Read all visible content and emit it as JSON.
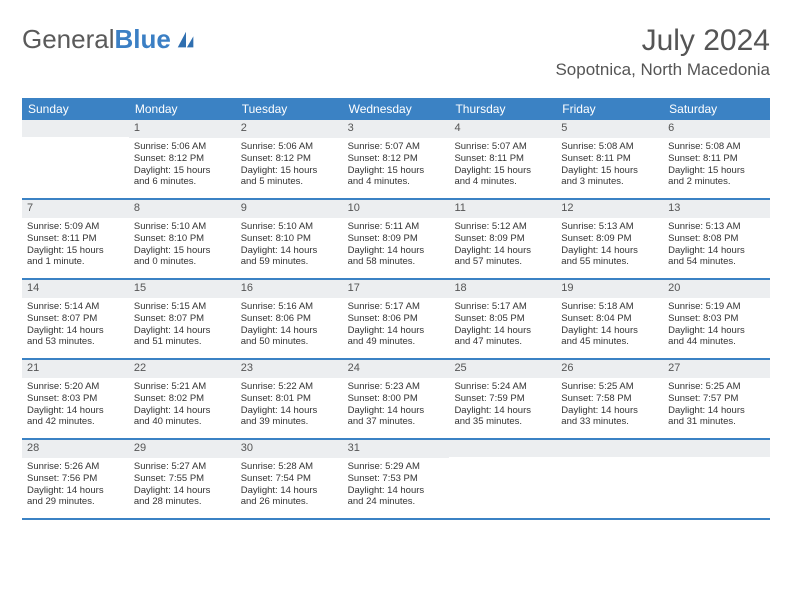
{
  "logo": {
    "general": "General",
    "blue": "Blue"
  },
  "title": "July 2024",
  "location": "Sopotnica, North Macedonia",
  "colors": {
    "header_bg": "#3b82c4",
    "daynum_bg": "#eceef0",
    "text": "#333333"
  },
  "dow": [
    "Sunday",
    "Monday",
    "Tuesday",
    "Wednesday",
    "Thursday",
    "Friday",
    "Saturday"
  ],
  "weeks": [
    [
      {
        "n": "",
        "l1": "",
        "l2": "",
        "l3": "",
        "l4": ""
      },
      {
        "n": "1",
        "l1": "Sunrise: 5:06 AM",
        "l2": "Sunset: 8:12 PM",
        "l3": "Daylight: 15 hours",
        "l4": "and 6 minutes."
      },
      {
        "n": "2",
        "l1": "Sunrise: 5:06 AM",
        "l2": "Sunset: 8:12 PM",
        "l3": "Daylight: 15 hours",
        "l4": "and 5 minutes."
      },
      {
        "n": "3",
        "l1": "Sunrise: 5:07 AM",
        "l2": "Sunset: 8:12 PM",
        "l3": "Daylight: 15 hours",
        "l4": "and 4 minutes."
      },
      {
        "n": "4",
        "l1": "Sunrise: 5:07 AM",
        "l2": "Sunset: 8:11 PM",
        "l3": "Daylight: 15 hours",
        "l4": "and 4 minutes."
      },
      {
        "n": "5",
        "l1": "Sunrise: 5:08 AM",
        "l2": "Sunset: 8:11 PM",
        "l3": "Daylight: 15 hours",
        "l4": "and 3 minutes."
      },
      {
        "n": "6",
        "l1": "Sunrise: 5:08 AM",
        "l2": "Sunset: 8:11 PM",
        "l3": "Daylight: 15 hours",
        "l4": "and 2 minutes."
      }
    ],
    [
      {
        "n": "7",
        "l1": "Sunrise: 5:09 AM",
        "l2": "Sunset: 8:11 PM",
        "l3": "Daylight: 15 hours",
        "l4": "and 1 minute."
      },
      {
        "n": "8",
        "l1": "Sunrise: 5:10 AM",
        "l2": "Sunset: 8:10 PM",
        "l3": "Daylight: 15 hours",
        "l4": "and 0 minutes."
      },
      {
        "n": "9",
        "l1": "Sunrise: 5:10 AM",
        "l2": "Sunset: 8:10 PM",
        "l3": "Daylight: 14 hours",
        "l4": "and 59 minutes."
      },
      {
        "n": "10",
        "l1": "Sunrise: 5:11 AM",
        "l2": "Sunset: 8:09 PM",
        "l3": "Daylight: 14 hours",
        "l4": "and 58 minutes."
      },
      {
        "n": "11",
        "l1": "Sunrise: 5:12 AM",
        "l2": "Sunset: 8:09 PM",
        "l3": "Daylight: 14 hours",
        "l4": "and 57 minutes."
      },
      {
        "n": "12",
        "l1": "Sunrise: 5:13 AM",
        "l2": "Sunset: 8:09 PM",
        "l3": "Daylight: 14 hours",
        "l4": "and 55 minutes."
      },
      {
        "n": "13",
        "l1": "Sunrise: 5:13 AM",
        "l2": "Sunset: 8:08 PM",
        "l3": "Daylight: 14 hours",
        "l4": "and 54 minutes."
      }
    ],
    [
      {
        "n": "14",
        "l1": "Sunrise: 5:14 AM",
        "l2": "Sunset: 8:07 PM",
        "l3": "Daylight: 14 hours",
        "l4": "and 53 minutes."
      },
      {
        "n": "15",
        "l1": "Sunrise: 5:15 AM",
        "l2": "Sunset: 8:07 PM",
        "l3": "Daylight: 14 hours",
        "l4": "and 51 minutes."
      },
      {
        "n": "16",
        "l1": "Sunrise: 5:16 AM",
        "l2": "Sunset: 8:06 PM",
        "l3": "Daylight: 14 hours",
        "l4": "and 50 minutes."
      },
      {
        "n": "17",
        "l1": "Sunrise: 5:17 AM",
        "l2": "Sunset: 8:06 PM",
        "l3": "Daylight: 14 hours",
        "l4": "and 49 minutes."
      },
      {
        "n": "18",
        "l1": "Sunrise: 5:17 AM",
        "l2": "Sunset: 8:05 PM",
        "l3": "Daylight: 14 hours",
        "l4": "and 47 minutes."
      },
      {
        "n": "19",
        "l1": "Sunrise: 5:18 AM",
        "l2": "Sunset: 8:04 PM",
        "l3": "Daylight: 14 hours",
        "l4": "and 45 minutes."
      },
      {
        "n": "20",
        "l1": "Sunrise: 5:19 AM",
        "l2": "Sunset: 8:03 PM",
        "l3": "Daylight: 14 hours",
        "l4": "and 44 minutes."
      }
    ],
    [
      {
        "n": "21",
        "l1": "Sunrise: 5:20 AM",
        "l2": "Sunset: 8:03 PM",
        "l3": "Daylight: 14 hours",
        "l4": "and 42 minutes."
      },
      {
        "n": "22",
        "l1": "Sunrise: 5:21 AM",
        "l2": "Sunset: 8:02 PM",
        "l3": "Daylight: 14 hours",
        "l4": "and 40 minutes."
      },
      {
        "n": "23",
        "l1": "Sunrise: 5:22 AM",
        "l2": "Sunset: 8:01 PM",
        "l3": "Daylight: 14 hours",
        "l4": "and 39 minutes."
      },
      {
        "n": "24",
        "l1": "Sunrise: 5:23 AM",
        "l2": "Sunset: 8:00 PM",
        "l3": "Daylight: 14 hours",
        "l4": "and 37 minutes."
      },
      {
        "n": "25",
        "l1": "Sunrise: 5:24 AM",
        "l2": "Sunset: 7:59 PM",
        "l3": "Daylight: 14 hours",
        "l4": "and 35 minutes."
      },
      {
        "n": "26",
        "l1": "Sunrise: 5:25 AM",
        "l2": "Sunset: 7:58 PM",
        "l3": "Daylight: 14 hours",
        "l4": "and 33 minutes."
      },
      {
        "n": "27",
        "l1": "Sunrise: 5:25 AM",
        "l2": "Sunset: 7:57 PM",
        "l3": "Daylight: 14 hours",
        "l4": "and 31 minutes."
      }
    ],
    [
      {
        "n": "28",
        "l1": "Sunrise: 5:26 AM",
        "l2": "Sunset: 7:56 PM",
        "l3": "Daylight: 14 hours",
        "l4": "and 29 minutes."
      },
      {
        "n": "29",
        "l1": "Sunrise: 5:27 AM",
        "l2": "Sunset: 7:55 PM",
        "l3": "Daylight: 14 hours",
        "l4": "and 28 minutes."
      },
      {
        "n": "30",
        "l1": "Sunrise: 5:28 AM",
        "l2": "Sunset: 7:54 PM",
        "l3": "Daylight: 14 hours",
        "l4": "and 26 minutes."
      },
      {
        "n": "31",
        "l1": "Sunrise: 5:29 AM",
        "l2": "Sunset: 7:53 PM",
        "l3": "Daylight: 14 hours",
        "l4": "and 24 minutes."
      },
      {
        "n": "",
        "l1": "",
        "l2": "",
        "l3": "",
        "l4": ""
      },
      {
        "n": "",
        "l1": "",
        "l2": "",
        "l3": "",
        "l4": ""
      },
      {
        "n": "",
        "l1": "",
        "l2": "",
        "l3": "",
        "l4": ""
      }
    ]
  ]
}
